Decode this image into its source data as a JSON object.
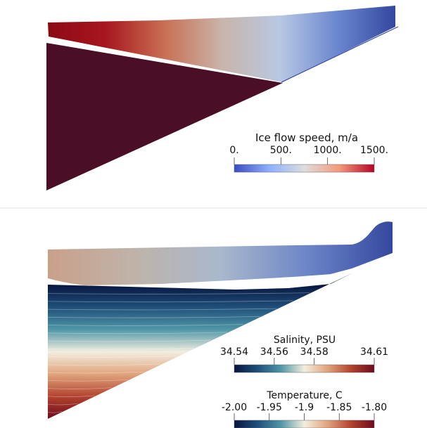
{
  "top_panel": {
    "colorbar": {
      "title": "Ice flow speed, m/a",
      "ticks": [
        "0.",
        "500.",
        "1000.",
        "1500."
      ],
      "tick_values": [
        0,
        500,
        1000,
        1500
      ],
      "range": [
        0,
        1500
      ],
      "colormap": [
        "#3b4cc0",
        "#8db0fe",
        "#dddddd",
        "#f49a7b",
        "#b40426"
      ]
    },
    "ice_shelf_colors": [
      "#8b0a14",
      "#a8161f",
      "#c96e52",
      "#c9b4aa",
      "#b9c8e3",
      "#6a87cf",
      "#33479f"
    ],
    "ocean_color": "#4a0f26"
  },
  "bottom_panel": {
    "ice_shelf_colors": [
      "#c9a08a",
      "#bfb3a9",
      "#a9b8cc",
      "#6d86c8",
      "#34489e"
    ],
    "colorbar_salinity": {
      "title": "Salinity, PSU",
      "ticks": [
        "34.54",
        "34.56",
        "34.58",
        "34.61"
      ],
      "tick_values": [
        34.54,
        34.56,
        34.58,
        34.61
      ],
      "range": [
        34.54,
        34.61
      ]
    },
    "colorbar_temperature": {
      "title": "Temperature, C",
      "ticks": [
        "-2.00",
        "-1.95",
        "-1.9",
        "-1.85",
        "-1.80"
      ],
      "tick_values": [
        -2.0,
        -1.95,
        -1.9,
        -1.85,
        -1.8
      ],
      "range": [
        -2.0,
        -1.8
      ]
    },
    "colormap": [
      "#07153f",
      "#1f4f7a",
      "#4f96a6",
      "#f2eedf",
      "#e0a47c",
      "#b2432f",
      "#6e0a1c"
    ]
  }
}
